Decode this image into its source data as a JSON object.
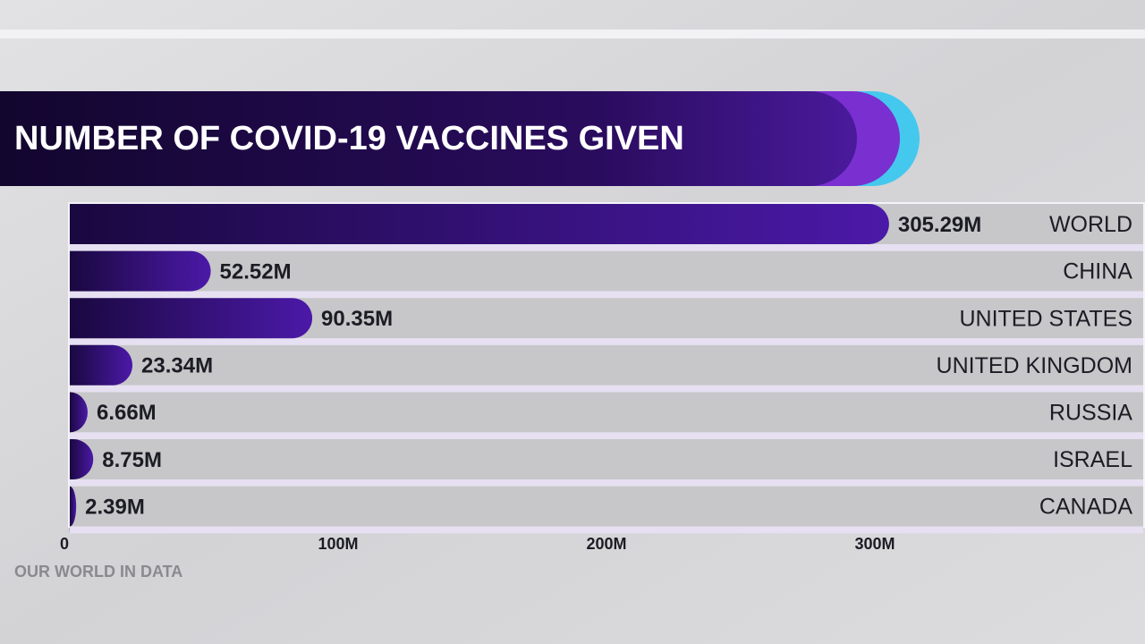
{
  "chart_data": {
    "type": "hbar",
    "title": "NUMBER OF COVID-19 VACCINES GIVEN",
    "source": "OUR WORLD IN DATA",
    "categories": [
      "WORLD",
      "CHINA",
      "UNITED STATES",
      "UNITED KINGDOM",
      "RUSSIA",
      "ISRAEL",
      "CANADA"
    ],
    "values": [
      305.29,
      52.52,
      90.35,
      23.34,
      6.66,
      8.75,
      2.39
    ],
    "value_labels": [
      "305.29M",
      "52.52M",
      "90.35M",
      "23.34M",
      "6.66M",
      "8.75M",
      "2.39M"
    ],
    "xlim": [
      0,
      400
    ],
    "xticks": [
      0,
      {
        "value": 100,
        "label": "100M"
      },
      {
        "value": 200,
        "label": "200M"
      },
      {
        "value": 300,
        "label": "300M"
      }
    ],
    "color": "#3f1590"
  }
}
